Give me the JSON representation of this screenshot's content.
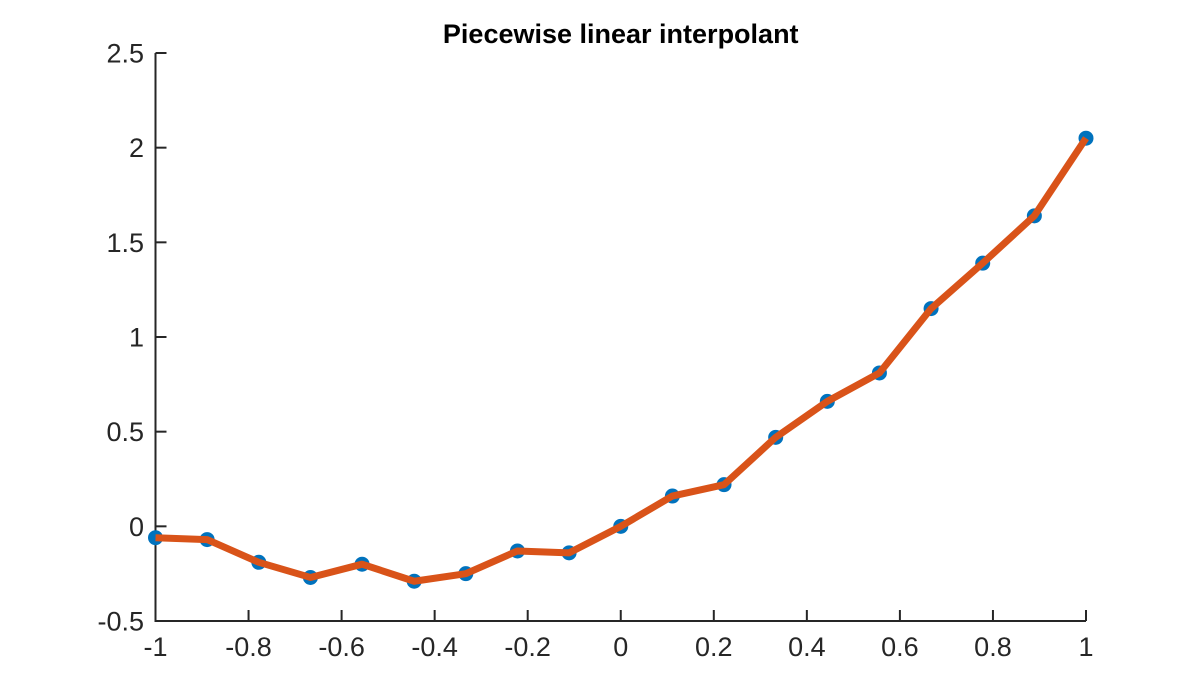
{
  "figure": {
    "background_color": "#ffffff",
    "axis_color": "#262626"
  },
  "chart_data": {
    "type": "line",
    "title": "Piecewise linear interpolant",
    "xlabel": "",
    "ylabel": "",
    "grid": false,
    "legend": null,
    "xlim": [
      -1,
      1
    ],
    "ylim": [
      -0.5,
      2.5
    ],
    "x_ticks": [
      -1,
      -0.8,
      -0.6,
      -0.4,
      -0.2,
      0,
      0.2,
      0.4,
      0.6,
      0.8,
      1
    ],
    "x_tick_labels": [
      "-1",
      "-0.8",
      "-0.6",
      "-0.4",
      "-0.2",
      "0",
      "0.2",
      "0.4",
      "0.6",
      "0.8",
      "1"
    ],
    "y_ticks": [
      -0.5,
      0,
      0.5,
      1,
      1.5,
      2,
      2.5
    ],
    "y_tick_labels": [
      "-0.5",
      "0",
      "0.5",
      "1",
      "1.5",
      "2",
      "2.5"
    ],
    "x": [
      -1,
      -0.889,
      -0.778,
      -0.667,
      -0.556,
      -0.444,
      -0.333,
      -0.222,
      -0.111,
      0,
      0.111,
      0.222,
      0.333,
      0.444,
      0.556,
      0.667,
      0.778,
      0.889,
      1
    ],
    "series": [
      {
        "name": "piecewise linear interpolant",
        "values": [
          -0.06,
          -0.07,
          -0.19,
          -0.27,
          -0.2,
          -0.29,
          -0.25,
          -0.13,
          -0.14,
          0.0,
          0.16,
          0.22,
          0.47,
          0.66,
          0.81,
          1.15,
          1.39,
          1.64,
          2.05
        ]
      }
    ],
    "line_color": "#D95319",
    "marker_color": "#0072BD",
    "marker_shape": "circle"
  }
}
